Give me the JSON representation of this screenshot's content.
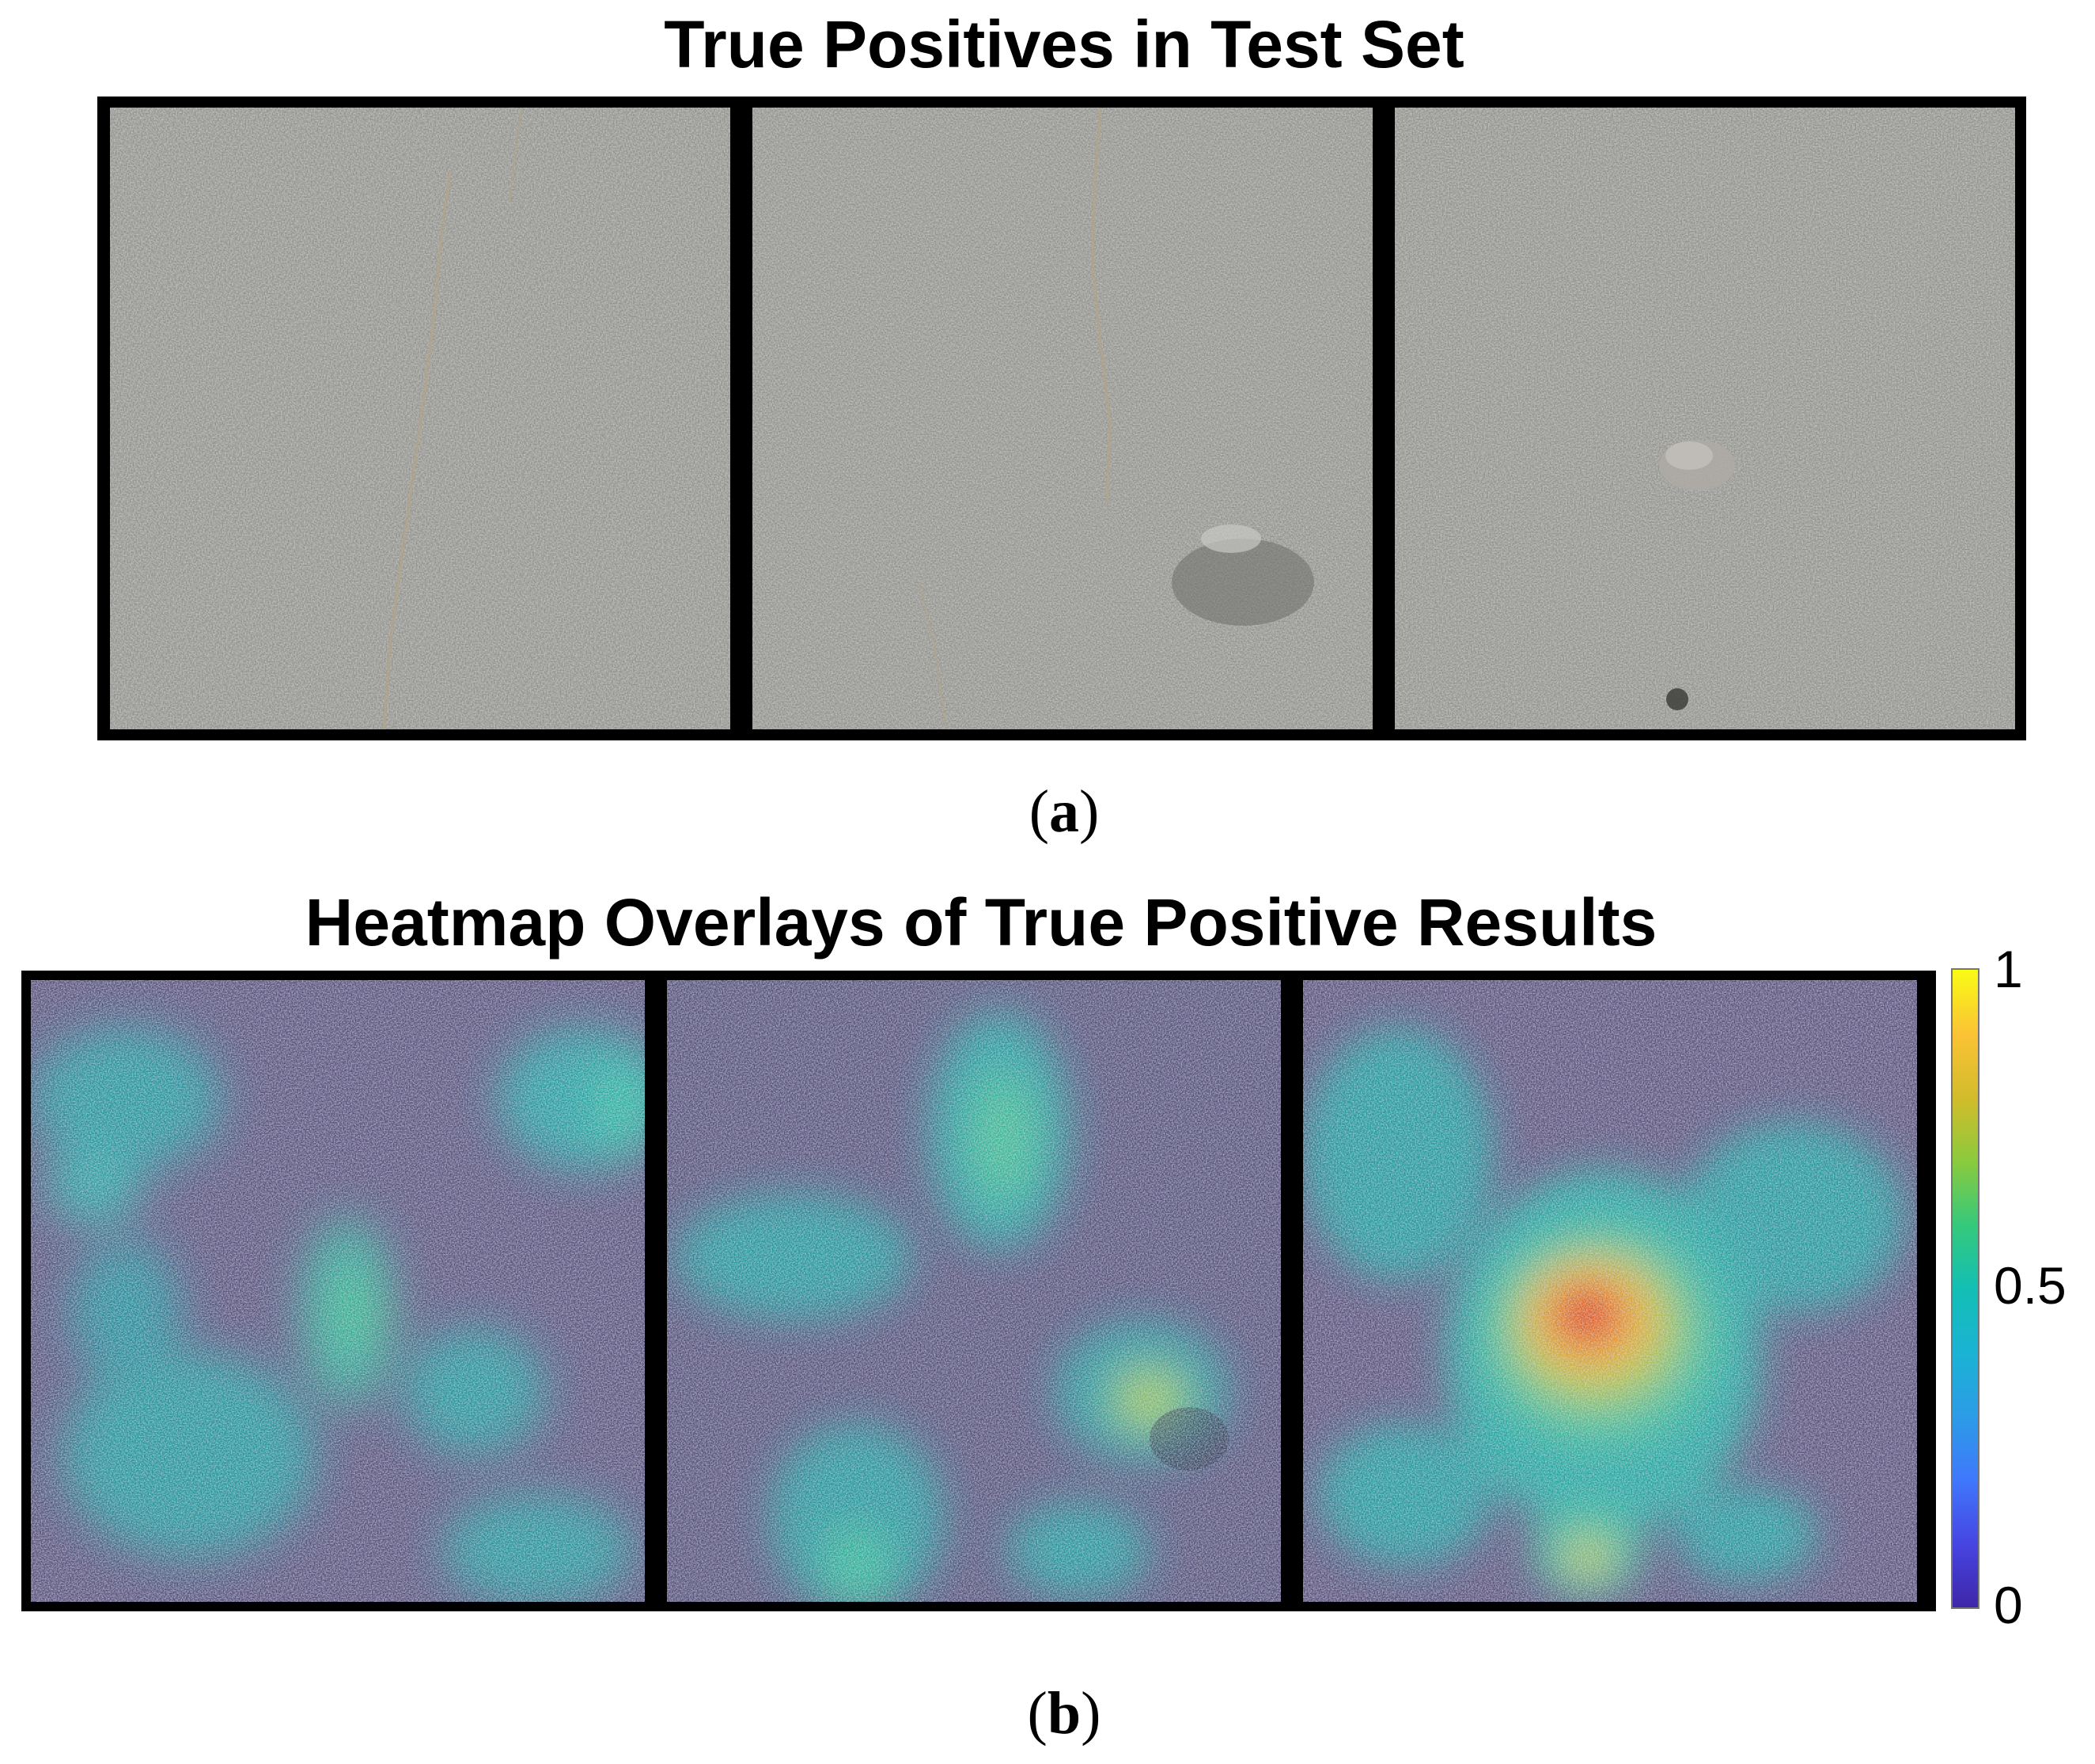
{
  "panel_a": {
    "title": "True Positives in Test Set",
    "caption_letter": "a",
    "images": [
      "grey asphalt crack photo 1",
      "grey asphalt crack photo 2",
      "grey asphalt crack photo 3"
    ]
  },
  "panel_b": {
    "title": "Heatmap Overlays of True Positive Results",
    "caption_letter": "b",
    "colorbar": {
      "ticks": [
        "1",
        "0.5",
        "0"
      ],
      "colormap": "parula",
      "colors": [
        "#3e26a8",
        "#2c9ce6",
        "#13bfb4",
        "#8bca3d",
        "#fbc335",
        "#f9fb15"
      ]
    }
  }
}
